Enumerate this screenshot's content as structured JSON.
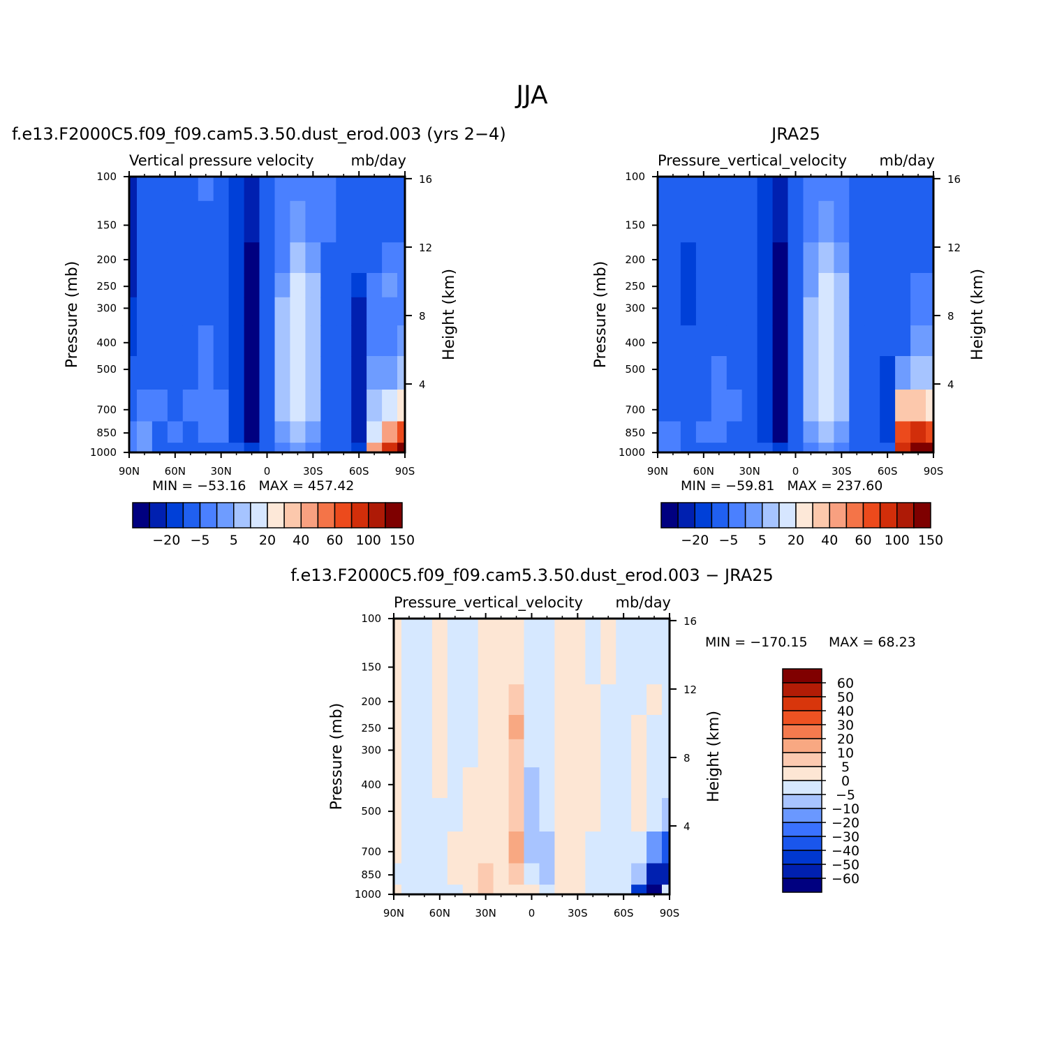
{
  "page_title": "JJA",
  "colormap": {
    "blue_red_16": [
      "#000080",
      "#0020b0",
      "#0040d8",
      "#2060f0",
      "#4a80ff",
      "#6e9cff",
      "#a6c4ff",
      "#d6e6ff",
      "#fde8d8",
      "#fcc8ac",
      "#f8a080",
      "#f47448",
      "#ec4a1c",
      "#d22e0a",
      "#ae1a06",
      "#7e0000"
    ],
    "diff_16": [
      "#000080",
      "#0020b0",
      "#0038d0",
      "#1a56ec",
      "#3a72ff",
      "#6a98ff",
      "#a8c4ff",
      "#d6e8ff",
      "#fde6d4",
      "#fccab0",
      "#f8a882",
      "#f47a4e",
      "#ee5222",
      "#d8360c",
      "#b21c06",
      "#800000"
    ]
  },
  "chart_data": [
    {
      "type": "heatmap",
      "panel": "model",
      "title": "f.e13.F2000C5.f09_f09.cam5.3.50.dust_erod.003 (yrs 2−4)",
      "left_label": "Vertical pressure velocity",
      "right_label": "mb/day",
      "ylabel": "Pressure (mb)",
      "ylabel_right": "Height (km)",
      "x_ticks": [
        "90N",
        "60N",
        "30N",
        "0",
        "30S",
        "60S",
        "90S"
      ],
      "y_ticks": [
        "100",
        "150",
        "200",
        "250",
        "300",
        "400",
        "500",
        "700",
        "850",
        "1000"
      ],
      "y_ticks_right": [
        "16",
        "12",
        "8",
        "4"
      ],
      "stats": {
        "min_label": "MIN =",
        "min": "−53.16",
        "max_label": "MAX =",
        "max": "457.42"
      },
      "colorbar_labels": [
        "−20",
        "−5",
        "5",
        "20",
        "40",
        "60",
        "100",
        "150"
      ],
      "columns": [
        {
          "lat": 90,
          "v": [
            1,
            1,
            1,
            1,
            2,
            2,
            3,
            3,
            4,
            4
          ]
        },
        {
          "lat": 80,
          "v": [
            3,
            3,
            3,
            3,
            3,
            3,
            3,
            4,
            5,
            5
          ]
        },
        {
          "lat": 70,
          "v": [
            3,
            3,
            3,
            3,
            3,
            3,
            3,
            4,
            3,
            3
          ]
        },
        {
          "lat": 60,
          "v": [
            3,
            3,
            3,
            3,
            3,
            3,
            3,
            3,
            4,
            3
          ]
        },
        {
          "lat": 50,
          "v": [
            3,
            3,
            3,
            3,
            3,
            3,
            3,
            4,
            3,
            3
          ]
        },
        {
          "lat": 40,
          "v": [
            4,
            3,
            3,
            3,
            3,
            4,
            4,
            4,
            4,
            3
          ]
        },
        {
          "lat": 30,
          "v": [
            3,
            3,
            3,
            3,
            3,
            3,
            3,
            4,
            4,
            3
          ]
        },
        {
          "lat": 20,
          "v": [
            2,
            2,
            2,
            2,
            2,
            2,
            2,
            2,
            2,
            3
          ]
        },
        {
          "lat": 10,
          "v": [
            1,
            1,
            0,
            0,
            0,
            0,
            0,
            0,
            0,
            2
          ]
        },
        {
          "lat": 0,
          "v": [
            3,
            3,
            3,
            3,
            3,
            3,
            3,
            3,
            3,
            3
          ]
        },
        {
          "lat": -10,
          "v": [
            4,
            4,
            4,
            5,
            6,
            6,
            6,
            6,
            5,
            4
          ]
        },
        {
          "lat": -20,
          "v": [
            4,
            5,
            6,
            7,
            7,
            7,
            7,
            7,
            6,
            5
          ]
        },
        {
          "lat": -30,
          "v": [
            4,
            4,
            5,
            6,
            6,
            6,
            6,
            6,
            5,
            4
          ]
        },
        {
          "lat": -40,
          "v": [
            4,
            4,
            3,
            3,
            3,
            3,
            3,
            3,
            3,
            3
          ]
        },
        {
          "lat": -50,
          "v": [
            3,
            3,
            3,
            3,
            3,
            3,
            3,
            3,
            3,
            3
          ]
        },
        {
          "lat": -60,
          "v": [
            3,
            3,
            3,
            2,
            1,
            1,
            1,
            1,
            1,
            2
          ]
        },
        {
          "lat": -70,
          "v": [
            3,
            3,
            3,
            4,
            4,
            4,
            5,
            6,
            7,
            10
          ]
        },
        {
          "lat": -80,
          "v": [
            3,
            3,
            4,
            5,
            4,
            4,
            5,
            7,
            10,
            13
          ]
        },
        {
          "lat": -90,
          "v": [
            3,
            3,
            4,
            4,
            4,
            5,
            6,
            8,
            12,
            15
          ]
        }
      ]
    },
    {
      "type": "heatmap",
      "panel": "obs",
      "title": "JRA25",
      "left_label": "Pressure_vertical_velocity",
      "right_label": "mb/day",
      "ylabel": "Pressure (mb)",
      "ylabel_right": "Height (km)",
      "x_ticks": [
        "90N",
        "60N",
        "30N",
        "0",
        "30S",
        "60S",
        "90S"
      ],
      "y_ticks": [
        "100",
        "150",
        "200",
        "250",
        "300",
        "400",
        "500",
        "700",
        "850",
        "1000"
      ],
      "y_ticks_right": [
        "16",
        "12",
        "8",
        "4"
      ],
      "stats": {
        "min_label": "MIN =",
        "min": "−59.81",
        "max_label": "MAX =",
        "max": "237.60"
      },
      "colorbar_labels": [
        "−20",
        "−5",
        "5",
        "20",
        "40",
        "60",
        "100",
        "150"
      ],
      "columns": [
        {
          "lat": 90,
          "v": [
            3,
            3,
            3,
            3,
            3,
            3,
            3,
            3,
            4,
            4
          ]
        },
        {
          "lat": 80,
          "v": [
            3,
            3,
            3,
            3,
            3,
            3,
            3,
            3,
            4,
            4
          ]
        },
        {
          "lat": 70,
          "v": [
            3,
            3,
            2,
            2,
            2,
            3,
            3,
            3,
            3,
            3
          ]
        },
        {
          "lat": 60,
          "v": [
            3,
            3,
            3,
            3,
            3,
            3,
            3,
            3,
            4,
            3
          ]
        },
        {
          "lat": 50,
          "v": [
            3,
            3,
            3,
            3,
            3,
            3,
            4,
            4,
            4,
            3
          ]
        },
        {
          "lat": 40,
          "v": [
            3,
            3,
            3,
            3,
            3,
            3,
            3,
            4,
            3,
            3
          ]
        },
        {
          "lat": 30,
          "v": [
            3,
            3,
            3,
            3,
            3,
            3,
            3,
            3,
            3,
            3
          ]
        },
        {
          "lat": 20,
          "v": [
            2,
            2,
            2,
            2,
            2,
            2,
            2,
            2,
            2,
            3
          ]
        },
        {
          "lat": 10,
          "v": [
            1,
            1,
            0,
            0,
            0,
            0,
            0,
            0,
            0,
            2
          ]
        },
        {
          "lat": 0,
          "v": [
            3,
            3,
            3,
            3,
            3,
            3,
            3,
            3,
            3,
            3
          ]
        },
        {
          "lat": -10,
          "v": [
            4,
            4,
            5,
            5,
            6,
            6,
            6,
            6,
            5,
            4
          ]
        },
        {
          "lat": -20,
          "v": [
            4,
            5,
            6,
            7,
            7,
            7,
            7,
            7,
            6,
            5
          ]
        },
        {
          "lat": -30,
          "v": [
            4,
            4,
            5,
            6,
            6,
            6,
            6,
            6,
            5,
            4
          ]
        },
        {
          "lat": -40,
          "v": [
            3,
            3,
            3,
            3,
            3,
            3,
            3,
            3,
            3,
            3
          ]
        },
        {
          "lat": -50,
          "v": [
            3,
            3,
            3,
            3,
            3,
            3,
            3,
            3,
            3,
            3
          ]
        },
        {
          "lat": -60,
          "v": [
            3,
            3,
            3,
            3,
            3,
            3,
            2,
            2,
            2,
            3
          ]
        },
        {
          "lat": -70,
          "v": [
            3,
            3,
            3,
            3,
            3,
            3,
            5,
            9,
            12,
            13
          ]
        },
        {
          "lat": -80,
          "v": [
            3,
            3,
            3,
            4,
            4,
            5,
            6,
            9,
            13,
            15
          ]
        },
        {
          "lat": -90,
          "v": [
            3,
            3,
            3,
            4,
            4,
            5,
            6,
            8,
            12,
            15
          ]
        }
      ]
    },
    {
      "type": "heatmap",
      "panel": "difference",
      "title": "f.e13.F2000C5.f09_f09.cam5.3.50.dust_erod.003 − JRA25",
      "left_label": "Pressure_vertical_velocity",
      "right_label": "mb/day",
      "ylabel": "Pressure (mb)",
      "ylabel_right": "Height (km)",
      "x_ticks": [
        "90N",
        "60N",
        "30N",
        "0",
        "30S",
        "60S",
        "90S"
      ],
      "y_ticks": [
        "100",
        "150",
        "200",
        "250",
        "300",
        "400",
        "500",
        "700",
        "850",
        "1000"
      ],
      "y_ticks_right": [
        "16",
        "12",
        "8",
        "4"
      ],
      "stats": {
        "min_label": "MIN =",
        "min": "−170.15",
        "max_label": "MAX =",
        "max": "68.23"
      },
      "colorbar_labels": [
        "60",
        "50",
        "40",
        "30",
        "20",
        "10",
        "5",
        "0",
        "−5",
        "−10",
        "−20",
        "−30",
        "−40",
        "−50",
        "−60"
      ],
      "columns": [
        {
          "lat": 90,
          "v": [
            8,
            8,
            8,
            8,
            8,
            8,
            8,
            8,
            7,
            8
          ]
        },
        {
          "lat": 80,
          "v": [
            7,
            7,
            7,
            7,
            7,
            7,
            7,
            7,
            7,
            7
          ]
        },
        {
          "lat": 70,
          "v": [
            7,
            7,
            7,
            7,
            7,
            7,
            7,
            7,
            7,
            7
          ]
        },
        {
          "lat": 60,
          "v": [
            8,
            8,
            8,
            8,
            8,
            8,
            7,
            7,
            7,
            7
          ]
        },
        {
          "lat": 50,
          "v": [
            7,
            7,
            7,
            7,
            7,
            7,
            7,
            8,
            8,
            7
          ]
        },
        {
          "lat": 40,
          "v": [
            7,
            7,
            7,
            7,
            7,
            8,
            8,
            8,
            8,
            8
          ]
        },
        {
          "lat": 30,
          "v": [
            8,
            8,
            8,
            8,
            8,
            8,
            8,
            8,
            9,
            9
          ]
        },
        {
          "lat": 20,
          "v": [
            8,
            8,
            8,
            8,
            8,
            8,
            8,
            8,
            8,
            8
          ]
        },
        {
          "lat": 10,
          "v": [
            8,
            8,
            9,
            10,
            9,
            9,
            9,
            10,
            9,
            8
          ]
        },
        {
          "lat": 0,
          "v": [
            7,
            7,
            7,
            7,
            7,
            6,
            6,
            6,
            7,
            8
          ]
        },
        {
          "lat": -10,
          "v": [
            7,
            7,
            7,
            7,
            7,
            7,
            7,
            6,
            6,
            7
          ]
        },
        {
          "lat": -20,
          "v": [
            8,
            8,
            8,
            8,
            8,
            8,
            8,
            8,
            8,
            8
          ]
        },
        {
          "lat": -30,
          "v": [
            8,
            8,
            8,
            8,
            8,
            8,
            8,
            8,
            8,
            8
          ]
        },
        {
          "lat": -40,
          "v": [
            7,
            7,
            8,
            8,
            8,
            8,
            8,
            7,
            7,
            7
          ]
        },
        {
          "lat": -50,
          "v": [
            8,
            8,
            7,
            7,
            7,
            7,
            7,
            7,
            7,
            7
          ]
        },
        {
          "lat": -60,
          "v": [
            7,
            7,
            7,
            7,
            7,
            7,
            7,
            7,
            7,
            7
          ]
        },
        {
          "lat": -70,
          "v": [
            7,
            7,
            7,
            8,
            8,
            8,
            8,
            7,
            6,
            2
          ]
        },
        {
          "lat": -80,
          "v": [
            7,
            7,
            8,
            7,
            7,
            7,
            7,
            5,
            1,
            0
          ]
        },
        {
          "lat": -90,
          "v": [
            7,
            7,
            7,
            7,
            7,
            7,
            6,
            3,
            1,
            7
          ]
        }
      ]
    }
  ]
}
